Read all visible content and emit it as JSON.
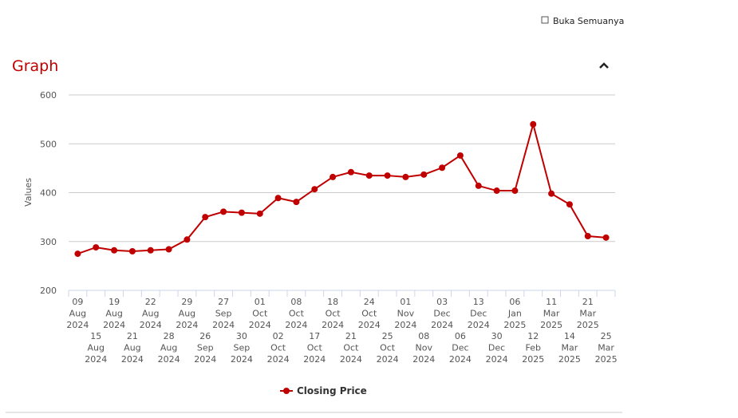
{
  "page": {
    "checkbox_label": "Buka Semuanya",
    "section_title": "Graph"
  },
  "chart_data": {
    "type": "line",
    "y_label": "Values",
    "categories": [
      "09 Aug 2024",
      "15 Aug 2024",
      "19 Aug 2024",
      "21 Aug 2024",
      "22 Aug 2024",
      "28 Aug 2024",
      "29 Aug 2024",
      "26 Sep 2024",
      "27 Sep 2024",
      "30 Sep 2024",
      "01 Oct 2024",
      "02 Oct 2024",
      "08 Oct 2024",
      "17 Oct 2024",
      "18 Oct 2024",
      "21 Oct 2024",
      "24 Oct 2024",
      "25 Oct 2024",
      "01 Nov 2024",
      "08 Nov 2024",
      "03 Dec 2024",
      "06 Dec 2024",
      "13 Dec 2024",
      "30 Dec 2024",
      "06 Jan 2025",
      "12 Feb 2025",
      "11 Mar 2025",
      "14 Mar 2025",
      "21 Mar 2025",
      "25 Mar 2025"
    ],
    "series": [
      {
        "name": "Closing Price",
        "color": "#c00000",
        "values": [
          275,
          288,
          282,
          280,
          282,
          284,
          304,
          350,
          361,
          359,
          357,
          389,
          381,
          407,
          432,
          442,
          435,
          435,
          432,
          437,
          451,
          476,
          414,
          404,
          404,
          540,
          398,
          376,
          311,
          308
        ]
      }
    ],
    "ylim": [
      200,
      600
    ],
    "yticks": [
      200,
      300,
      400,
      500,
      600
    ],
    "grid": true
  }
}
